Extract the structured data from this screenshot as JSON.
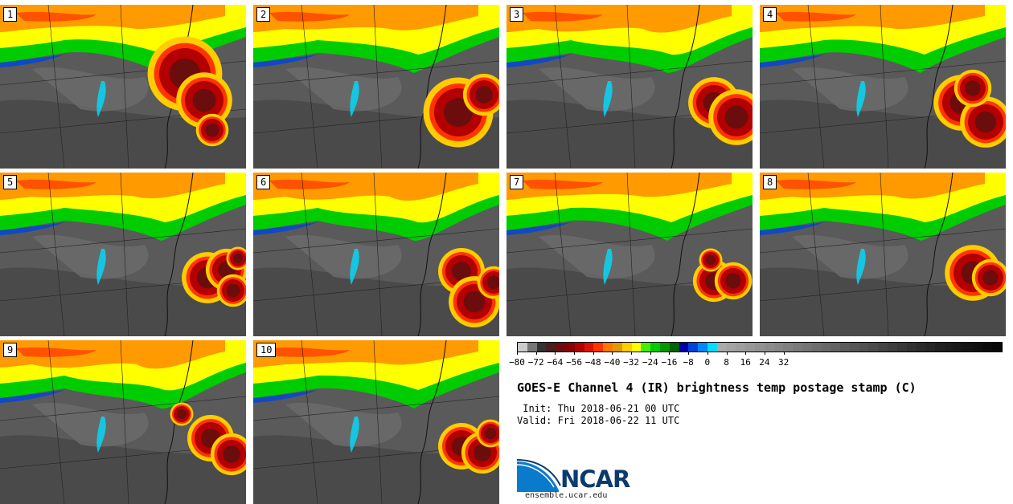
{
  "panels": [
    {
      "label": "1",
      "cells": [
        [
          230,
          92,
          32
        ],
        [
          254,
          125,
          24
        ],
        [
          264,
          162,
          14
        ]
      ]
    },
    {
      "label": "2",
      "cells": [
        [
          570,
          140,
          30
        ],
        [
          602,
          118,
          18
        ]
      ]
    },
    {
      "label": "3",
      "cells": [
        [
          888,
          128,
          22
        ],
        [
          916,
          146,
          24
        ]
      ]
    },
    {
      "label": "4",
      "cells": [
        [
          1196,
          128,
          24
        ],
        [
          1226,
          152,
          22
        ],
        [
          1210,
          110,
          16
        ]
      ]
    },
    {
      "label": "5",
      "cells": [
        [
          258,
          346,
          22
        ],
        [
          282,
          336,
          18
        ],
        [
          290,
          362,
          14
        ],
        [
          296,
          322,
          10
        ]
      ]
    },
    {
      "label": "6",
      "cells": [
        [
          574,
          338,
          20
        ],
        [
          590,
          376,
          22
        ],
        [
          614,
          352,
          14
        ]
      ]
    },
    {
      "label": "7",
      "cells": [
        [
          888,
          350,
          18
        ],
        [
          912,
          350,
          16
        ],
        [
          884,
          324,
          10
        ]
      ]
    },
    {
      "label": "8",
      "cells": [
        [
          1210,
          340,
          24
        ],
        [
          1232,
          346,
          16
        ]
      ]
    },
    {
      "label": "9",
      "cells": [
        [
          262,
          546,
          20
        ],
        [
          288,
          566,
          18
        ],
        [
          226,
          516,
          10
        ]
      ]
    },
    {
      "label": "10",
      "cells": [
        [
          574,
          556,
          20
        ],
        [
          600,
          564,
          18
        ],
        [
          610,
          540,
          12
        ]
      ]
    }
  ],
  "colorbar": {
    "colors": [
      "#cccccc",
      "#777777",
      "#333333",
      "#4a1e1e",
      "#6b0d0d",
      "#8c0000",
      "#b30000",
      "#dd1100",
      "#ff3300",
      "#ff7700",
      "#e09a00",
      "#ffcc00",
      "#ffff00",
      "#44ee00",
      "#00cc00",
      "#009900",
      "#006600",
      "#0000aa",
      "#0044dd",
      "#0088ff",
      "#00ddff",
      "#aaaaaa",
      "#a4a4a4",
      "#9e9e9e",
      "#989898",
      "#929292",
      "#8c8c8c",
      "#868686",
      "#808080",
      "#7a7a7a",
      "#747474",
      "#6e6e6e",
      "#686868",
      "#626262",
      "#5c5c5c",
      "#565656",
      "#505050",
      "#4a4a4a",
      "#444444",
      "#3e3e3e",
      "#383838",
      "#323232",
      "#2c2c2c",
      "#262626",
      "#202020",
      "#1c1c1c",
      "#181818",
      "#141414",
      "#101010",
      "#0c0c0c",
      "#080808"
    ],
    "ticks": [
      "−80",
      "−72",
      "−64",
      "−56",
      "−48",
      "−40",
      "−32",
      "−24",
      "−16",
      "−8",
      "0",
      "8",
      "16",
      "24",
      "32"
    ]
  },
  "title": "GOES-E Channel 4 (IR) brightness temp postage stamp (C)",
  "init": " Init: Thu 2018-06-21 00 UTC",
  "valid": "Valid: Fri 2018-06-22 11 UTC",
  "logo_text": "NCAR",
  "site": "ensemble.ucar.edu"
}
